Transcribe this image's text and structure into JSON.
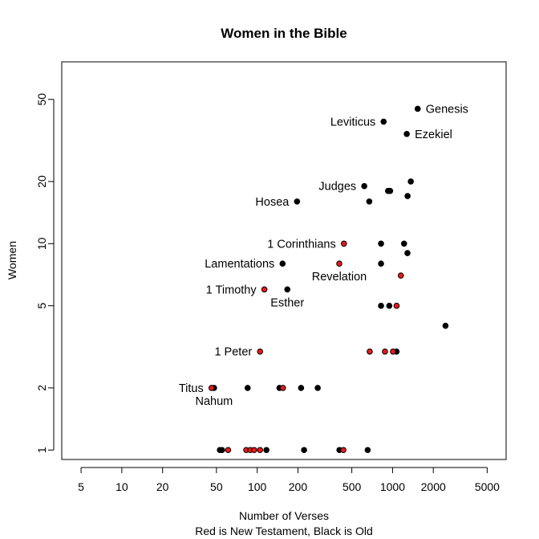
{
  "chart_data": {
    "type": "scatter",
    "title": "Women in the Bible",
    "xlabel": "Number of Verses",
    "xlabel_line2": "Red is New Testament, Black is Old",
    "ylabel": "Women",
    "x_scale": "log",
    "y_scale": "log",
    "xlim": [
      3.6,
      6900
    ],
    "ylim": [
      0.9,
      76
    ],
    "x_ticks": [
      5,
      10,
      20,
      50,
      100,
      200,
      500,
      1000,
      2000,
      5000
    ],
    "x_tick_labels": [
      "5",
      "10",
      "20",
      "50",
      "100",
      "200",
      "500",
      "1000",
      "2000",
      "5000"
    ],
    "y_ticks": [
      1,
      2,
      5,
      10,
      20,
      50
    ],
    "y_tick_labels": [
      "1",
      "2",
      "5",
      "10",
      "20",
      "50"
    ],
    "grid": false,
    "colors": {
      "new_testament": "#e8191a",
      "old_testament": "#000000",
      "point_outline": "#000000"
    },
    "series": [
      {
        "testament": "Old",
        "color": "#000000",
        "points": [
          {
            "x": 1533,
            "y": 45
          },
          {
            "x": 859,
            "y": 39
          },
          {
            "x": 1273,
            "y": 34
          },
          {
            "x": 1364,
            "y": 20
          },
          {
            "x": 618,
            "y": 19
          },
          {
            "x": 926,
            "y": 18
          },
          {
            "x": 960,
            "y": 18
          },
          {
            "x": 1291,
            "y": 17
          },
          {
            "x": 197,
            "y": 16
          },
          {
            "x": 673,
            "y": 16
          },
          {
            "x": 822,
            "y": 10
          },
          {
            "x": 1216,
            "y": 10
          },
          {
            "x": 1288,
            "y": 9
          },
          {
            "x": 154,
            "y": 8
          },
          {
            "x": 822,
            "y": 8
          },
          {
            "x": 167,
            "y": 6
          },
          {
            "x": 822,
            "y": 5
          },
          {
            "x": 946,
            "y": 5
          },
          {
            "x": 2461,
            "y": 4
          },
          {
            "x": 1070,
            "y": 3
          },
          {
            "x": 48,
            "y": 2
          },
          {
            "x": 85,
            "y": 2
          },
          {
            "x": 146,
            "y": 2
          },
          {
            "x": 211,
            "y": 2
          },
          {
            "x": 280,
            "y": 2
          },
          {
            "x": 53,
            "y": 1
          },
          {
            "x": 55,
            "y": 1
          },
          {
            "x": 117,
            "y": 1
          },
          {
            "x": 222,
            "y": 1
          },
          {
            "x": 405,
            "y": 1
          },
          {
            "x": 655,
            "y": 1
          }
        ]
      },
      {
        "testament": "New",
        "color": "#e8191a",
        "points": [
          {
            "x": 437,
            "y": 10
          },
          {
            "x": 404,
            "y": 8
          },
          {
            "x": 1151,
            "y": 7
          },
          {
            "x": 113,
            "y": 6
          },
          {
            "x": 1071,
            "y": 5
          },
          {
            "x": 105,
            "y": 3
          },
          {
            "x": 678,
            "y": 3
          },
          {
            "x": 879,
            "y": 3
          },
          {
            "x": 1007,
            "y": 3
          },
          {
            "x": 46,
            "y": 2
          },
          {
            "x": 155,
            "y": 2
          },
          {
            "x": 61,
            "y": 1
          },
          {
            "x": 83,
            "y": 1
          },
          {
            "x": 89,
            "y": 1
          },
          {
            "x": 95,
            "y": 1
          },
          {
            "x": 105,
            "y": 1
          },
          {
            "x": 433,
            "y": 1
          }
        ]
      }
    ],
    "annotations": [
      {
        "text": "Genesis",
        "x": 1533,
        "y": 45,
        "anchor": "start"
      },
      {
        "text": "Leviticus",
        "x": 859,
        "y": 39,
        "anchor": "end"
      },
      {
        "text": "Ezekiel",
        "x": 1273,
        "y": 34,
        "anchor": "start"
      },
      {
        "text": "Judges",
        "x": 618,
        "y": 19,
        "anchor": "end"
      },
      {
        "text": "Hosea",
        "x": 197,
        "y": 16,
        "anchor": "end"
      },
      {
        "text": "1 Corinthians",
        "x": 437,
        "y": 10,
        "anchor": "end"
      },
      {
        "text": "Lamentations",
        "x": 154,
        "y": 8,
        "anchor": "end"
      },
      {
        "text": "Revelation",
        "x": 404,
        "y": 8,
        "anchor": "below"
      },
      {
        "text": "1 Timothy",
        "x": 113,
        "y": 6,
        "anchor": "end"
      },
      {
        "text": "Esther",
        "x": 167,
        "y": 6,
        "anchor": "below"
      },
      {
        "text": "1 Peter",
        "x": 105,
        "y": 3,
        "anchor": "end"
      },
      {
        "text": "Titus",
        "x": 46,
        "y": 2,
        "anchor": "end"
      },
      {
        "text": "Nahum",
        "x": 48,
        "y": 2,
        "anchor": "below"
      }
    ]
  }
}
